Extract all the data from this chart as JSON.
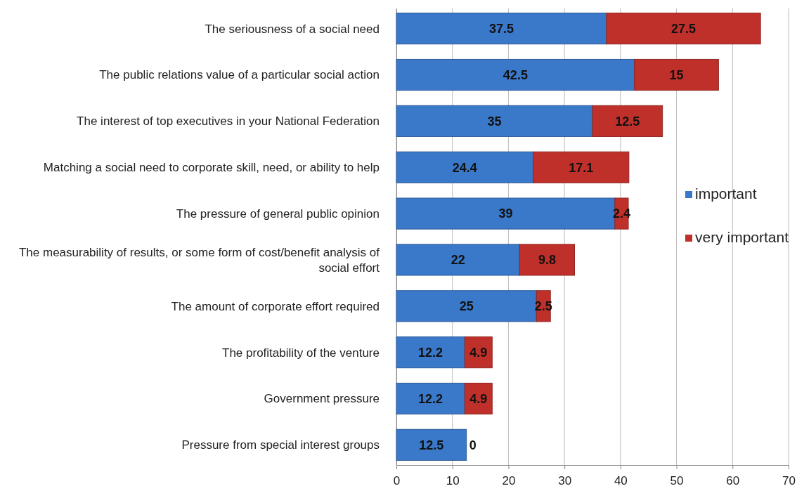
{
  "chart_data": {
    "type": "bar",
    "orientation": "horizontal",
    "stacked": true,
    "data_labels": true,
    "grid": "x",
    "legend": "right",
    "categories": [
      "The seriousness of a social need",
      "The public relations value of a particular social action",
      "The interest of top executives in your National Federation",
      "Matching a social need to corporate skill, need, or ability to help",
      "The pressure of general public opinion",
      "The measurability of results, or some form of cost/benefit analysis of social effort",
      "The amount of corporate effort required",
      "The profitability of the venture",
      "Government pressure",
      "Pressure from special interest groups"
    ],
    "series": [
      {
        "name": "important",
        "color": "#3a78c9",
        "values": [
          37.5,
          42.5,
          35,
          24.4,
          39,
          22,
          25,
          12.2,
          12.2,
          12.5
        ]
      },
      {
        "name": "very important",
        "color": "#c0302a",
        "values": [
          27.5,
          15,
          12.5,
          17.1,
          2.4,
          9.8,
          2.5,
          4.9,
          4.9,
          0
        ]
      }
    ],
    "xlim": [
      0,
      70
    ],
    "xticks": [
      0,
      10,
      20,
      30,
      40,
      50,
      60,
      70
    ]
  }
}
